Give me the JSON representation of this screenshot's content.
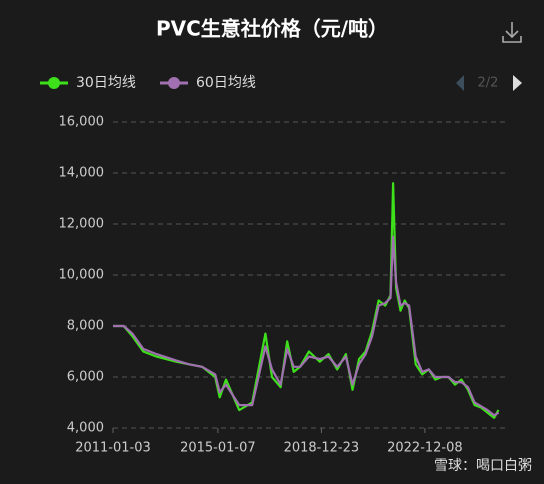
{
  "chart_data": {
    "type": "line",
    "title": "PVC生意社价格（元/吨）",
    "pager": "2/2",
    "watermark": "雪球：喝口白粥",
    "x": [
      "2011-01-03",
      "2011-06-01",
      "2011-10-01",
      "2012-03-01",
      "2012-09-01",
      "2013-06-01",
      "2013-12-01",
      "2014-06-01",
      "2014-12-01",
      "2015-02-01",
      "2015-05-01",
      "2015-11-01",
      "2016-05-01",
      "2016-11-01",
      "2017-02-01",
      "2017-06-01",
      "2017-09-01",
      "2017-12-01",
      "2018-03-01",
      "2018-07-01",
      "2018-12-01",
      "2019-04-01",
      "2019-08-01",
      "2019-12-01",
      "2020-03-01",
      "2020-06-01",
      "2020-09-01",
      "2020-12-01",
      "2021-03-01",
      "2021-06-01",
      "2021-08-15",
      "2021-09-20",
      "2021-11-01",
      "2022-01-01",
      "2022-03-01",
      "2022-05-01",
      "2022-08-01",
      "2022-11-01",
      "2023-02-01",
      "2023-05-01",
      "2023-08-01",
      "2023-11-01",
      "2024-02-01",
      "2024-05-01",
      "2024-08-01",
      "2024-11-01",
      "2025-02-01",
      "2025-05-01",
      "2025-08-01",
      "2025-10-01"
    ],
    "series": [
      {
        "name": "30日均线",
        "color": "#3de01a",
        "values": [
          8000,
          8000,
          7600,
          7000,
          6800,
          6600,
          6500,
          6400,
          6000,
          5200,
          5900,
          4700,
          5000,
          7700,
          6000,
          5600,
          7400,
          6200,
          6400,
          7000,
          6600,
          6900,
          6300,
          6900,
          5500,
          6700,
          7000,
          7800,
          9000,
          8800,
          9200,
          13600,
          9500,
          8600,
          9000,
          8700,
          6500,
          6100,
          6300,
          5900,
          6000,
          6000,
          5700,
          5900,
          5500,
          4900,
          4800,
          4600,
          4400,
          4700
        ]
      },
      {
        "name": "60日均线",
        "color": "#a070b0",
        "values": [
          8000,
          8000,
          7700,
          7100,
          6900,
          6650,
          6500,
          6400,
          6100,
          5400,
          5700,
          4900,
          4900,
          7200,
          6300,
          5700,
          7100,
          6400,
          6400,
          6800,
          6700,
          6800,
          6400,
          6800,
          5700,
          6500,
          6900,
          7600,
          8800,
          8900,
          9100,
          11500,
          9700,
          8800,
          8900,
          8800,
          6800,
          6200,
          6300,
          6000,
          6000,
          6000,
          5800,
          5800,
          5600,
          5000,
          4850,
          4700,
          4500,
          4600
        ]
      }
    ],
    "xlim": [
      "2011-01-03",
      "2025-12-31"
    ],
    "xticks": [
      "2011-01-03",
      "2015-01-07",
      "2018-12-23",
      "2022-12-08"
    ],
    "ylim": [
      4000,
      16000
    ],
    "yticks": [
      {
        "value": 4000,
        "label": "4,000"
      },
      {
        "value": 6000,
        "label": "6,000"
      },
      {
        "value": 8000,
        "label": "8,000"
      },
      {
        "value": 10000,
        "label": "10,000"
      },
      {
        "value": 12000,
        "label": "12,000"
      },
      {
        "value": 14000,
        "label": "14,000"
      },
      {
        "value": 16000,
        "label": "16,000"
      }
    ],
    "grid": true
  }
}
